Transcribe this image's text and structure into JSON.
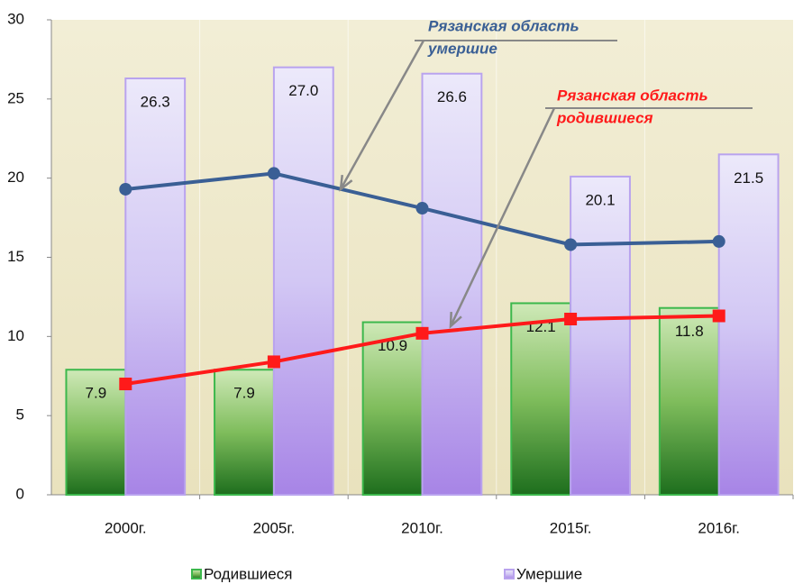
{
  "chart_data": {
    "type": "bar_line",
    "categories": [
      "2000г.",
      "2005г.",
      "2010г.",
      "2015г.",
      "2016г."
    ],
    "series": [
      {
        "name": "Родившиеся",
        "type": "bar",
        "color": "#3cb84c",
        "values": [
          7.9,
          7.9,
          10.9,
          12.1,
          11.8
        ],
        "value_labels": [
          "7.9",
          "7.9",
          "10.9",
          "12.1",
          "11.8"
        ]
      },
      {
        "name": "Умершие",
        "type": "bar",
        "color": "#b9a3ee",
        "values": [
          26.3,
          27.0,
          26.6,
          20.1,
          21.5
        ],
        "value_labels": [
          "26.3",
          "27.0",
          "26.6",
          "20.1",
          "21.5"
        ]
      },
      {
        "type": "line",
        "color": "#3a5f95",
        "values": [
          19.3,
          20.3,
          18.1,
          15.8,
          16.0
        ]
      },
      {
        "type": "line",
        "color": "#ff1a1a",
        "values": [
          7.0,
          8.4,
          10.2,
          11.1,
          11.3
        ]
      }
    ],
    "annotations": [
      {
        "lines": [
          "Рязанская область",
          "умершие"
        ],
        "color": "#3a5f95",
        "series": 2
      },
      {
        "lines": [
          "Рязанская область",
          "родившиеся"
        ],
        "color": "#ff1a1a",
        "series": 3
      }
    ],
    "ylim": [
      0,
      30
    ],
    "yticks": [
      0,
      5,
      10,
      15,
      20,
      25,
      30
    ],
    "grid": false
  }
}
